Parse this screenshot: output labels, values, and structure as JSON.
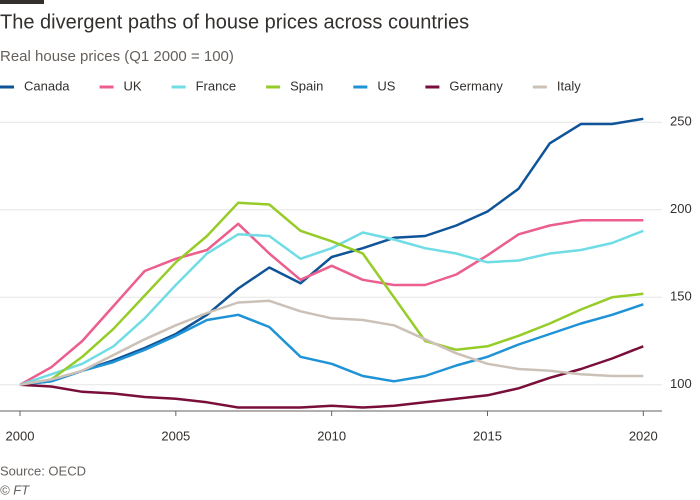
{
  "chart_data": {
    "type": "line",
    "title": "The divergent paths of house prices across countries",
    "subtitle": "Real house prices (Q1 2000 = 100)",
    "source": "Source: OECD",
    "credit": "© FT",
    "x": [
      2000,
      2001,
      2002,
      2003,
      2004,
      2005,
      2006,
      2007,
      2008,
      2009,
      2010,
      2011,
      2012,
      2013,
      2014,
      2015,
      2016,
      2017,
      2018,
      2019,
      2020
    ],
    "xlim": [
      2000,
      2020.6
    ],
    "xticks": [
      2000,
      2005,
      2010,
      2015,
      2020
    ],
    "ylim": [
      85,
      265
    ],
    "yticks": [
      100,
      150,
      200,
      250
    ],
    "grid": true,
    "legend": "top",
    "series": [
      {
        "name": "Canada",
        "color": "#0f5499",
        "values": [
          100,
          102,
          108,
          114,
          121,
          129,
          140,
          155,
          167,
          158,
          173,
          178,
          184,
          185,
          191,
          199,
          212,
          238,
          249,
          249,
          252
        ]
      },
      {
        "name": "UK",
        "color": "#eb5e8d",
        "values": [
          100,
          110,
          125,
          145,
          165,
          172,
          177,
          192,
          175,
          160,
          168,
          160,
          157,
          157,
          163,
          174,
          186,
          191,
          194,
          194,
          194
        ]
      },
      {
        "name": "France",
        "color": "#70dce6",
        "values": [
          100,
          106,
          112,
          122,
          138,
          157,
          175,
          186,
          185,
          172,
          178,
          187,
          183,
          178,
          175,
          170,
          171,
          175,
          177,
          181,
          188
        ]
      },
      {
        "name": "Spain",
        "color": "#96cc28",
        "values": [
          100,
          103,
          116,
          132,
          151,
          170,
          185,
          204,
          203,
          188,
          182,
          175,
          150,
          125,
          120,
          122,
          128,
          135,
          143,
          150,
          152
        ]
      },
      {
        "name": "US",
        "color": "#1f93d6",
        "values": [
          100,
          102,
          108,
          113,
          120,
          128,
          137,
          140,
          133,
          116,
          112,
          105,
          102,
          105,
          111,
          116,
          123,
          129,
          135,
          140,
          146
        ]
      },
      {
        "name": "Germany",
        "color": "#7a0e3a",
        "values": [
          100,
          99,
          96,
          95,
          93,
          92,
          90,
          87,
          87,
          87,
          88,
          87,
          88,
          90,
          92,
          94,
          98,
          104,
          109,
          115,
          122
        ]
      },
      {
        "name": "Italy",
        "color": "#ccc1b7",
        "values": [
          100,
          103,
          108,
          117,
          126,
          134,
          141,
          147,
          148,
          142,
          138,
          137,
          134,
          126,
          118,
          112,
          109,
          108,
          106,
          105,
          105
        ]
      }
    ]
  }
}
